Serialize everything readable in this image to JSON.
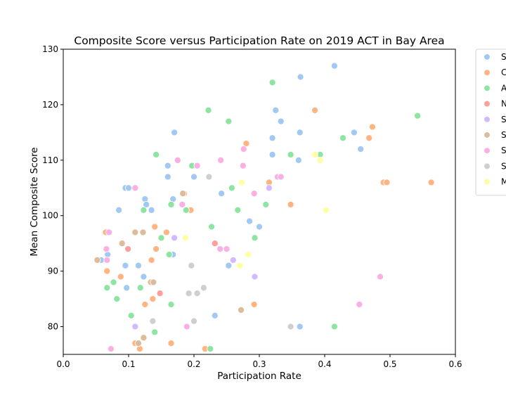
{
  "chart_data": {
    "type": "scatter",
    "title": "Composite Score versus Participation Rate on 2019 ACT in Bay Area",
    "xlabel": "Participation Rate",
    "ylabel": "Mean Composite Score",
    "xlim": [
      0.0,
      0.6
    ],
    "ylim": [
      75,
      130
    ],
    "xticks": [
      "0.0",
      "0.1",
      "0.2",
      "0.3",
      "0.4",
      "0.5",
      "0.6"
    ],
    "yticks": [
      "80",
      "90",
      "100",
      "110",
      "120",
      "130"
    ],
    "grid": false,
    "legend_position": "outside-top-right",
    "series": [
      {
        "name": "S",
        "color": "#a1c9f4",
        "points": [
          [
            0.415,
            127
          ],
          [
            0.363,
            125
          ],
          [
            0.325,
            119
          ],
          [
            0.333,
            117
          ],
          [
            0.17,
            115
          ],
          [
            0.362,
            115
          ],
          [
            0.445,
            115
          ],
          [
            0.32,
            114
          ],
          [
            0.455,
            112
          ],
          [
            0.32,
            111
          ],
          [
            0.36,
            110
          ],
          [
            0.16,
            109
          ],
          [
            0.2,
            109
          ],
          [
            0.16,
            107
          ],
          [
            0.2,
            107
          ],
          [
            0.095,
            105
          ],
          [
            0.1,
            105
          ],
          [
            0.242,
            104
          ],
          [
            0.125,
            103
          ],
          [
            0.168,
            103
          ],
          [
            0.127,
            102
          ],
          [
            0.085,
            101
          ],
          [
            0.135,
            101
          ],
          [
            0.285,
            99
          ],
          [
            0.3,
            98
          ],
          [
            0.068,
            93
          ],
          [
            0.168,
            93
          ],
          [
            0.058,
            92
          ],
          [
            0.095,
            91
          ],
          [
            0.115,
            91
          ],
          [
            0.253,
            91
          ],
          [
            0.123,
            89
          ],
          [
            0.097,
            87
          ],
          [
            0.232,
            82
          ],
          [
            0.362,
            80
          ]
        ]
      },
      {
        "name": "C",
        "color": "#ffb482",
        "points": [
          [
            0.385,
            119
          ],
          [
            0.473,
            116
          ],
          [
            0.468,
            114
          ],
          [
            0.28,
            113
          ],
          [
            0.315,
            106
          ],
          [
            0.49,
            106
          ],
          [
            0.495,
            106
          ],
          [
            0.563,
            106
          ],
          [
            0.185,
            104
          ],
          [
            0.348,
            102
          ],
          [
            0.195,
            101
          ],
          [
            0.14,
            98
          ],
          [
            0.065,
            97
          ],
          [
            0.158,
            97
          ],
          [
            0.142,
            94
          ],
          [
            0.135,
            92
          ],
          [
            0.067,
            90
          ],
          [
            0.088,
            89
          ],
          [
            0.137,
            85
          ],
          [
            0.125,
            84
          ],
          [
            0.292,
            84
          ],
          [
            0.272,
            83
          ],
          [
            0.123,
            78
          ],
          [
            0.11,
            77
          ],
          [
            0.165,
            77
          ],
          [
            0.117,
            76
          ],
          [
            0.217,
            76
          ]
        ]
      },
      {
        "name": "A",
        "color": "#8de5a1",
        "points": [
          [
            0.32,
            124
          ],
          [
            0.222,
            119
          ],
          [
            0.542,
            118
          ],
          [
            0.253,
            117
          ],
          [
            0.428,
            114
          ],
          [
            0.142,
            111
          ],
          [
            0.348,
            111
          ],
          [
            0.393,
            111
          ],
          [
            0.197,
            109
          ],
          [
            0.258,
            105
          ],
          [
            0.165,
            102
          ],
          [
            0.31,
            102
          ],
          [
            0.123,
            101
          ],
          [
            0.188,
            101
          ],
          [
            0.267,
            101
          ],
          [
            0.227,
            98
          ],
          [
            0.15,
            96
          ],
          [
            0.293,
            96
          ],
          [
            0.162,
            93
          ],
          [
            0.077,
            88
          ],
          [
            0.067,
            87
          ],
          [
            0.118,
            87
          ],
          [
            0.082,
            85
          ],
          [
            0.165,
            84
          ],
          [
            0.104,
            82
          ],
          [
            0.415,
            80
          ],
          [
            0.14,
            79
          ],
          [
            0.225,
            76
          ]
        ]
      },
      {
        "name": "N",
        "color": "#ff9f9b",
        "points": [
          [
            0.232,
            95
          ],
          [
            0.099,
            94
          ],
          [
            0.148,
            86
          ]
        ]
      },
      {
        "name": "S",
        "color": "#d0bbff",
        "points": [
          [
            0.315,
            105
          ],
          [
            0.17,
            96
          ],
          [
            0.26,
            92
          ],
          [
            0.293,
            89
          ],
          [
            0.11,
            80
          ]
        ]
      },
      {
        "name": "S",
        "color": "#debb9b",
        "points": [
          [
            0.183,
            104
          ],
          [
            0.11,
            97
          ],
          [
            0.122,
            97
          ],
          [
            0.09,
            95
          ],
          [
            0.052,
            92
          ],
          [
            0.134,
            88
          ],
          [
            0.138,
            88
          ],
          [
            0.272,
            83
          ],
          [
            0.123,
            78
          ],
          [
            0.115,
            77
          ]
        ]
      },
      {
        "name": "S",
        "color": "#fab0e4",
        "points": [
          [
            0.276,
            112
          ],
          [
            0.175,
            110
          ],
          [
            0.205,
            109
          ],
          [
            0.241,
            110
          ],
          [
            0.275,
            109
          ],
          [
            0.328,
            107
          ],
          [
            0.333,
            107
          ],
          [
            0.11,
            105
          ],
          [
            0.292,
            104
          ],
          [
            0.182,
            102
          ],
          [
            0.07,
            97
          ],
          [
            0.066,
            94
          ],
          [
            0.24,
            94
          ],
          [
            0.25,
            94
          ],
          [
            0.067,
            92
          ],
          [
            0.485,
            89
          ],
          [
            0.453,
            84
          ],
          [
            0.189,
            80
          ],
          [
            0.073,
            76
          ]
        ]
      },
      {
        "name": "S",
        "color": "#cfcfcf",
        "points": [
          [
            0.223,
            107
          ],
          [
            0.196,
            91
          ],
          [
            0.215,
            87
          ],
          [
            0.192,
            86
          ],
          [
            0.205,
            86
          ],
          [
            0.137,
            81
          ],
          [
            0.2,
            81
          ],
          [
            0.348,
            80
          ]
        ]
      },
      {
        "name": "M",
        "color": "#fffea3",
        "points": [
          [
            0.385,
            111
          ],
          [
            0.393,
            110
          ],
          [
            0.273,
            106
          ],
          [
            0.402,
            101
          ],
          [
            0.187,
            96
          ],
          [
            0.283,
            93
          ],
          [
            0.27,
            91
          ]
        ]
      }
    ]
  }
}
